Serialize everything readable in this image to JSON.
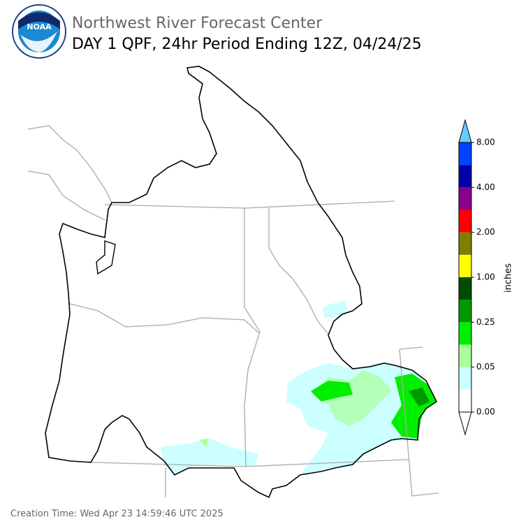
{
  "header": {
    "title": "Northwest River Forecast Center",
    "subtitle": "DAY 1 QPF, 24hr Period Ending 12Z, 04/24/25",
    "logo_text": "NOAA"
  },
  "colorbar": {
    "label": "inches",
    "colors": [
      "#ffffff",
      "#ccffff",
      "#aaff99",
      "#00ee00",
      "#009900",
      "#004d00",
      "#ffff00",
      "#807f00",
      "#ff0000",
      "#880088",
      "#0000aa",
      "#0044ff"
    ],
    "over_color": "#66ccff",
    "under_color": "#ffffff",
    "ticks": [
      {
        "value": 0,
        "label": "0.00"
      },
      {
        "value": 0.05,
        "label": "0.05"
      },
      {
        "value": 0.25,
        "label": "0.25"
      },
      {
        "value": 1,
        "label": "1.00"
      },
      {
        "value": 2,
        "label": "2.00"
      },
      {
        "value": 4,
        "label": "4.00"
      },
      {
        "value": 8,
        "label": "8.00"
      }
    ]
  },
  "footer": {
    "creation_time": "Creation Time: Wed Apr 23 14:59:46 UTC 2025"
  }
}
